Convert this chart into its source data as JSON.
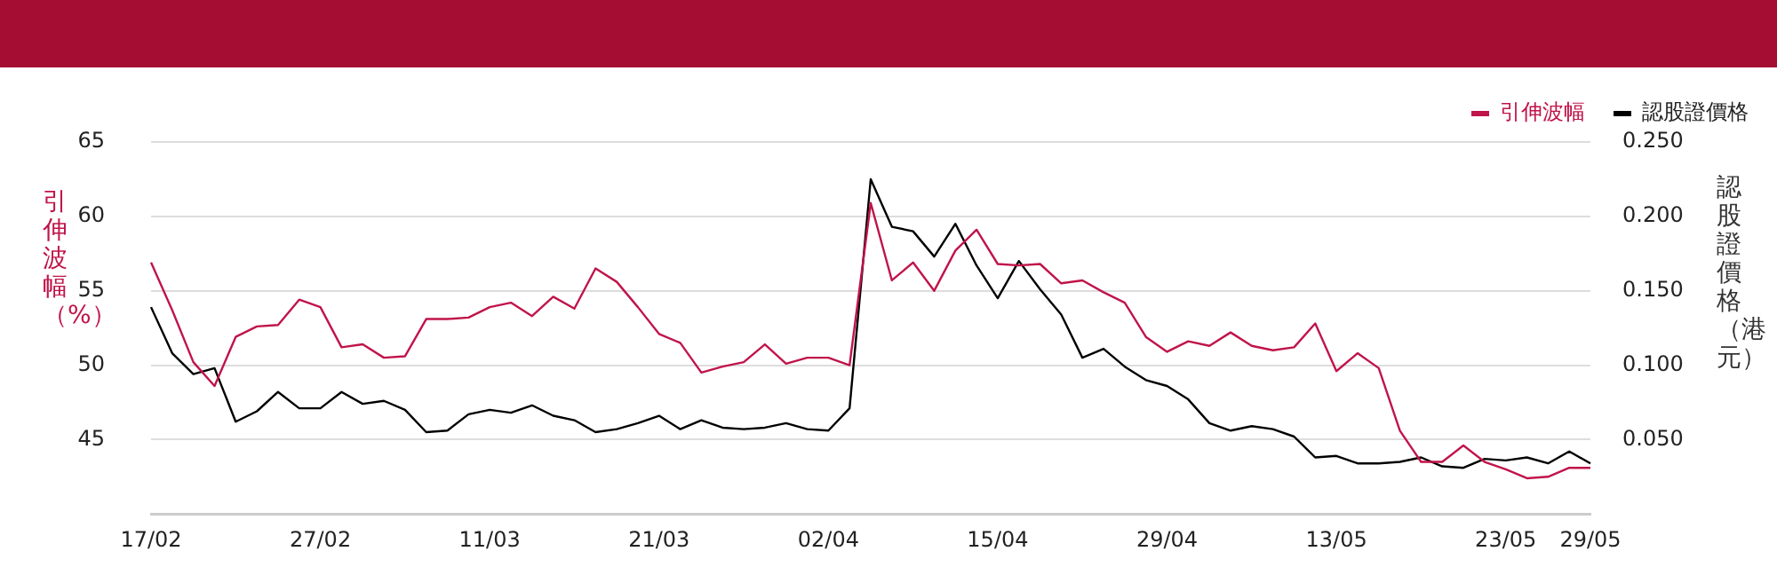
{
  "chart_data": {
    "type": "line",
    "categories": [
      "17/02",
      null,
      null,
      null,
      null,
      null,
      null,
      null,
      "27/02",
      null,
      null,
      null,
      null,
      null,
      null,
      null,
      "11/03",
      null,
      null,
      null,
      null,
      null,
      null,
      null,
      "21/03",
      null,
      null,
      null,
      null,
      null,
      null,
      null,
      "02/04",
      null,
      null,
      null,
      null,
      null,
      null,
      null,
      "15/04",
      null,
      null,
      null,
      null,
      null,
      null,
      null,
      "29/04",
      null,
      null,
      null,
      null,
      null,
      null,
      null,
      "13/05",
      null,
      null,
      null,
      null,
      null,
      null,
      null,
      "23/05",
      null,
      null,
      null,
      "29/05"
    ],
    "series": [
      {
        "name": "引伸波幅",
        "color": "#c0144a",
        "values": [
          56.9,
          53.7,
          50.2,
          48.6,
          51.9,
          52.6,
          52.7,
          54.4,
          53.9,
          51.2,
          51.4,
          50.5,
          50.6,
          53.1,
          53.1,
          53.2,
          53.9,
          54.2,
          53.3,
          54.6,
          53.8,
          56.5,
          55.6,
          53.9,
          52.1,
          51.5,
          49.5,
          49.9,
          50.2,
          51.4,
          50.1,
          50.5,
          50.5,
          50.0,
          60.9,
          55.7,
          56.9,
          55.0,
          57.7,
          59.1,
          56.8,
          56.7,
          56.8,
          55.5,
          55.7,
          54.9,
          54.2,
          51.9,
          50.9,
          51.6,
          51.3,
          52.2,
          51.3,
          51.0,
          51.2,
          52.8,
          49.6,
          50.8,
          49.8,
          45.6,
          43.5,
          43.5,
          44.6,
          43.5,
          43.0,
          42.4,
          42.5,
          43.1,
          43.1
        ]
      },
      {
        "name": "認股證價格",
        "color": "#000000",
        "axis": "y2",
        "values": [
          0.139,
          0.108,
          0.094,
          0.098,
          0.062,
          0.069,
          0.082,
          0.071,
          0.071,
          0.082,
          0.074,
          0.076,
          0.07,
          0.055,
          0.056,
          0.067,
          0.07,
          0.068,
          0.073,
          0.066,
          0.063,
          0.055,
          0.057,
          0.061,
          0.066,
          0.057,
          0.063,
          0.058,
          0.057,
          0.058,
          0.061,
          0.057,
          0.056,
          0.071,
          0.225,
          0.193,
          0.19,
          0.173,
          0.195,
          0.167,
          0.145,
          0.17,
          0.151,
          0.134,
          0.105,
          0.111,
          0.099,
          0.09,
          0.086,
          0.077,
          0.061,
          0.056,
          0.059,
          0.057,
          0.052,
          0.038,
          0.039,
          0.034,
          0.034,
          0.035,
          0.038,
          0.032,
          0.031,
          0.037,
          0.036,
          0.038,
          0.034,
          0.042,
          0.034
        ]
      }
    ],
    "ylabel": "引伸波幅（%）",
    "y2label": "認股證價格（港元）",
    "ylim": [
      40,
      65
    ],
    "yticks": [
      45,
      50,
      55,
      60,
      65
    ],
    "y2lim": [
      0,
      0.25
    ],
    "y2ticks": [
      {
        "value": 0.05,
        "label": "0.050"
      },
      {
        "value": 0.1,
        "label": "0.100"
      },
      {
        "value": 0.15,
        "label": "0.150"
      },
      {
        "value": 0.2,
        "label": "0.200"
      },
      {
        "value": 0.25,
        "label": "0.250"
      }
    ],
    "grid": "y",
    "legend": "top right",
    "marker": "none",
    "line_style": "solid"
  }
}
